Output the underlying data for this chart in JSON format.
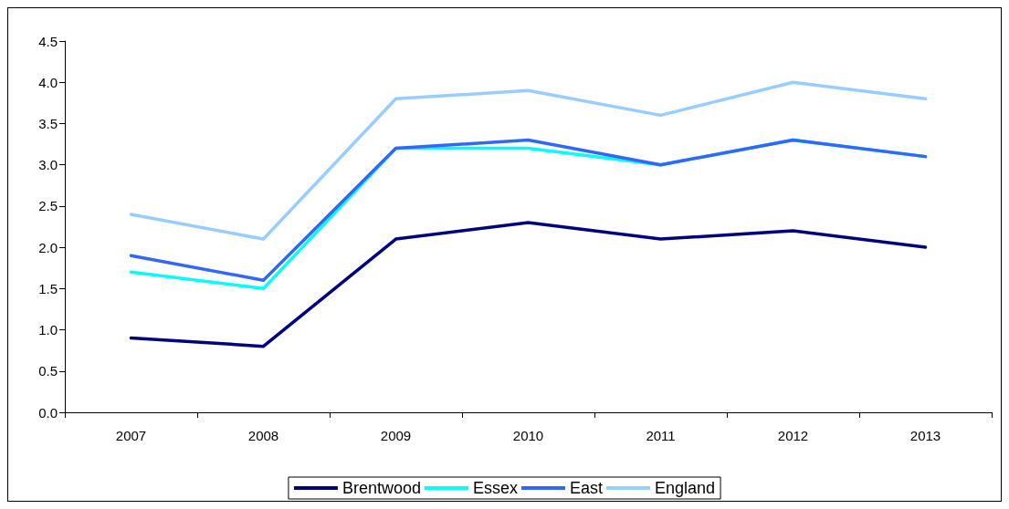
{
  "chart_data": {
    "type": "line",
    "categories": [
      "2007",
      "2008",
      "2009",
      "2010",
      "2011",
      "2012",
      "2013"
    ],
    "series": [
      {
        "name": "Brentwood",
        "color": "#000080",
        "values": [
          0.9,
          0.8,
          2.1,
          2.3,
          2.1,
          2.2,
          2.0
        ]
      },
      {
        "name": "Essex",
        "color": "#00ffff",
        "values": [
          1.7,
          1.5,
          3.2,
          3.2,
          3.0,
          3.3,
          3.1
        ]
      },
      {
        "name": "East",
        "color": "#3366ff",
        "values": [
          1.9,
          1.6,
          3.2,
          3.3,
          3.0,
          3.3,
          3.1
        ]
      },
      {
        "name": "England",
        "color": "#99ccff",
        "values": [
          2.4,
          2.1,
          3.8,
          3.9,
          3.6,
          4.0,
          3.8
        ]
      }
    ],
    "ylim": [
      0,
      4.5
    ],
    "yticks": [
      {
        "value": 0,
        "label": "0.0"
      },
      {
        "value": 0.5,
        "label": "0.5"
      },
      {
        "value": 1,
        "label": "1.0"
      },
      {
        "value": 1.5,
        "label": "1.5"
      },
      {
        "value": 2,
        "label": "2.0"
      },
      {
        "value": 2.5,
        "label": "2.5"
      },
      {
        "value": 3,
        "label": "3.0"
      },
      {
        "value": 3.5,
        "label": "3.5"
      },
      {
        "value": 4,
        "label": "4.0"
      },
      {
        "value": 4.5,
        "label": "4.5"
      }
    ],
    "grid": false,
    "legend": "bottom",
    "marker": "none",
    "line_style": "solid"
  }
}
